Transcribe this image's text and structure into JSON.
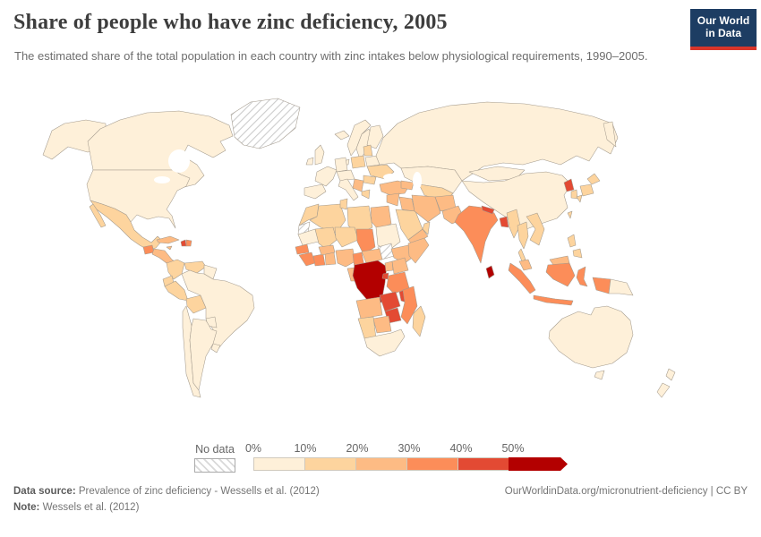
{
  "header": {
    "title": "Share of people who have zinc deficiency, 2005",
    "subtitle": "The estimated share of the total population in each country with zinc intakes below physiological requirements, 1990–2005.",
    "logo_line1": "Our World",
    "logo_line2": "in Data"
  },
  "legend": {
    "no_data_label": "No data"
  },
  "footer": {
    "data_source_label": "Data source:",
    "data_source_text": "Prevalence of zinc deficiency - Wessells et al. (2012)",
    "note_label": "Note:",
    "note_text": "Wessels et al. (2012)",
    "right_text": "OurWorldinData.org/micronutrient-deficiency | CC BY"
  },
  "colors": {
    "logo_background": "#1d3d63",
    "logo_accent": "#d8352a",
    "map_border": "#a39a8d",
    "title_text": "#3d3d3d",
    "muted_text": "#6d6d6d"
  },
  "chart_data": {
    "type": "choropleth_map",
    "title": "Share of people who have zinc deficiency, 2005",
    "unit": "% of population",
    "year": 2005,
    "legend": {
      "position": "bottom",
      "no_data_label": "No data",
      "tick_labels": [
        "0%",
        "10%",
        "20%",
        "30%",
        "40%",
        "50%"
      ],
      "bins": [
        {
          "key": "0-10%",
          "color": "#fef0d9"
        },
        {
          "key": "10-20%",
          "color": "#fdd49e"
        },
        {
          "key": "20-30%",
          "color": "#fdbb84"
        },
        {
          "key": "30-40%",
          "color": "#fc8d59"
        },
        {
          "key": "40-50%",
          "color": "#e34a33"
        },
        {
          "key": "50%+",
          "color": "#b30000"
        }
      ],
      "colors_by_key": {
        "0-10%": "#fef0d9",
        "10-20%": "#fdd49e",
        "20-30%": "#fdbb84",
        "30-40%": "#fc8d59",
        "40-50%": "#e34a33",
        "50%+": "#b30000"
      }
    },
    "regions": {
      "United States": "0-10%",
      "Canada": "0-10%",
      "Greenland": "No data",
      "Iceland": "0-10%",
      "Mexico": "10-20%",
      "Guatemala": "30-40%",
      "Central America": "20-30%",
      "Cuba": "20-30%",
      "Jamaica": "20-30%",
      "Haiti": "40-50%",
      "Dominican Republic": "30-40%",
      "Colombia": "10-20%",
      "Venezuela": "10-20%",
      "Guyana": "0-10%",
      "Ecuador": "10-20%",
      "Peru": "10-20%",
      "Bolivia": "10-20%",
      "Brazil": "0-10%",
      "Paraguay": "0-10%",
      "Uruguay": "0-10%",
      "Chile": "0-10%",
      "Argentina": "0-10%",
      "United Kingdom": "0-10%",
      "Ireland": "0-10%",
      "Norway": "0-10%",
      "Sweden": "0-10%",
      "Finland": "0-10%",
      "Denmark": "0-10%",
      "France": "0-10%",
      "Spain": "0-10%",
      "Germany": "0-10%",
      "Central Europe": "0-10%",
      "Italy": "0-10%",
      "Poland": "10-20%",
      "Baltic States": "10-20%",
      "Belarus": "0-10%",
      "Ukraine": "10-20%",
      "Romania": "10-20%",
      "Balkans": "20-30%",
      "Greece": "10-20%",
      "Turkey": "20-30%",
      "Russia": "0-10%",
      "Kazakhstan": "0-10%",
      "Central Asia": "10-20%",
      "Caucasus": "20-30%",
      "Mongolia": "0-10%",
      "China": "0-10%",
      "Taiwan": "10-20%",
      "North Korea": "40-50%",
      "South Korea": "10-20%",
      "Japan": "10-20%",
      "Syria": "20-30%",
      "Iraq": "20-30%",
      "Saudi Arabia": "10-20%",
      "Yemen": "20-30%",
      "Oman": "10-20%",
      "Iran": "20-30%",
      "Afghanistan": "20-30%",
      "Pakistan": "20-30%",
      "India": "30-40%",
      "Nepal": "40-50%",
      "Bangladesh": "40-50%",
      "Sri Lanka": "50%+",
      "Myanmar": "10-20%",
      "Thailand": "10-20%",
      "Vietnam": "10-20%",
      "Malaysia": "20-30%",
      "Indonesia": "30-40%",
      "Philippines": "10-20%",
      "Papua New Guinea": "0-10%",
      "Australia": "0-10%",
      "New Zealand": "0-10%",
      "Morocco": "10-20%",
      "Western Sahara": "No data",
      "Algeria": "10-20%",
      "Tunisia": "10-20%",
      "Libya": "10-20%",
      "Egypt": "20-30%",
      "Mauritania": "0-10%",
      "Mali": "10-20%",
      "Niger": "10-20%",
      "Chad": "30-40%",
      "Sudan": "0-10%",
      "South Sudan": "No data",
      "Ethiopia": "20-30%",
      "Somalia": "20-30%",
      "Senegal": "30-40%",
      "Guinea": "30-40%",
      "Cote d'Ivoire": "30-40%",
      "Ghana": "20-30%",
      "Burkina Faso": "20-30%",
      "Nigeria": "20-30%",
      "Cameroon": "30-40%",
      "Central African Republic": "20-30%",
      "Congo": "20-30%",
      "DR Congo": "50%+",
      "Uganda": "20-30%",
      "Kenya": "20-30%",
      "Tanzania": "30-40%",
      "Rwanda": "40-50%",
      "Angola": "20-30%",
      "Zambia": "40-50%",
      "Malawi": "40-50%",
      "Mozambique": "30-40%",
      "Zimbabwe": "40-50%",
      "Botswana": "20-30%",
      "Namibia": "10-20%",
      "South Africa": "0-10%",
      "Madagascar": "10-20%"
    }
  }
}
